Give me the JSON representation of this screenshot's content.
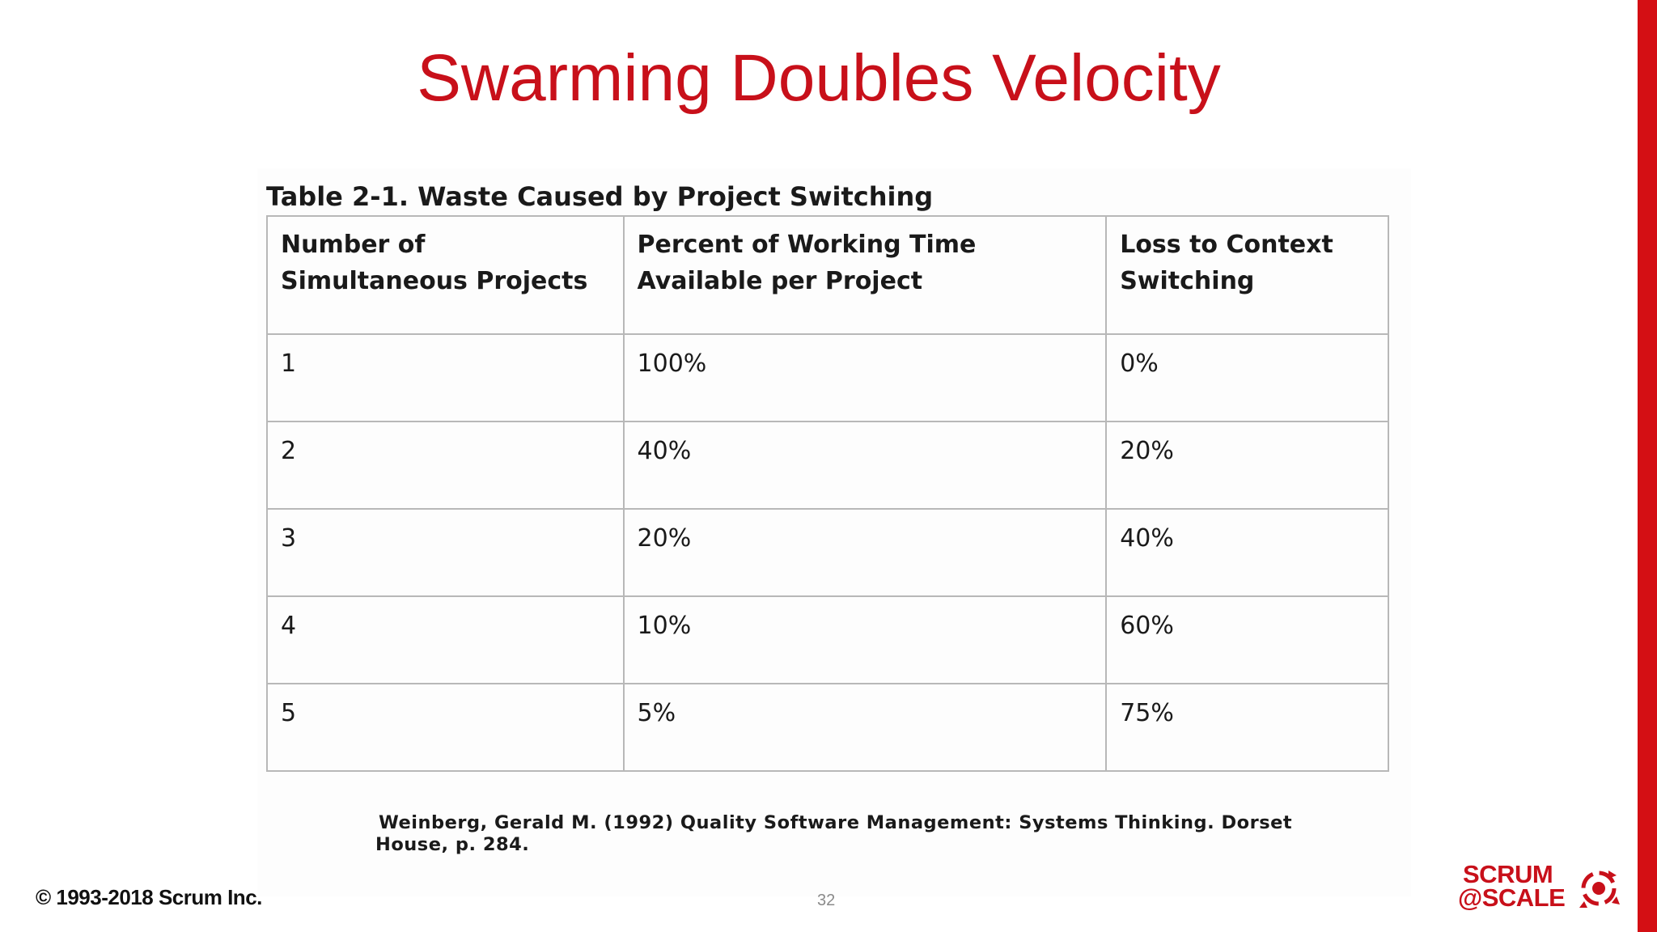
{
  "slide": {
    "title": "Swarming Doubles Velocity",
    "page_number": "32",
    "copyright": "© 1993-2018 Scrum Inc."
  },
  "table": {
    "caption": "Table 2-1. Waste Caused by Project Switching",
    "headers": [
      "Number of Simultaneous Projects",
      "Percent of Working Time Available per Project",
      "Loss to Context Switching"
    ],
    "rows": [
      [
        "1",
        "100%",
        "0%"
      ],
      [
        "2",
        "40%",
        "20%"
      ],
      [
        "3",
        "20%",
        "40%"
      ],
      [
        "4",
        "10%",
        "60%"
      ],
      [
        "5",
        "5%",
        "75%"
      ]
    ]
  },
  "citation": {
    "line1": "Weinberg, Gerald M. (1992) Quality Software Management: Systems Thinking. Dorset",
    "line2": "House, p. 284."
  },
  "logo": {
    "line1": "SCRUM",
    "line2": "@SCALE",
    "icon": "scrum-cycle-icon"
  },
  "colors": {
    "accent": "#d40f14",
    "title": "#c8101a"
  }
}
